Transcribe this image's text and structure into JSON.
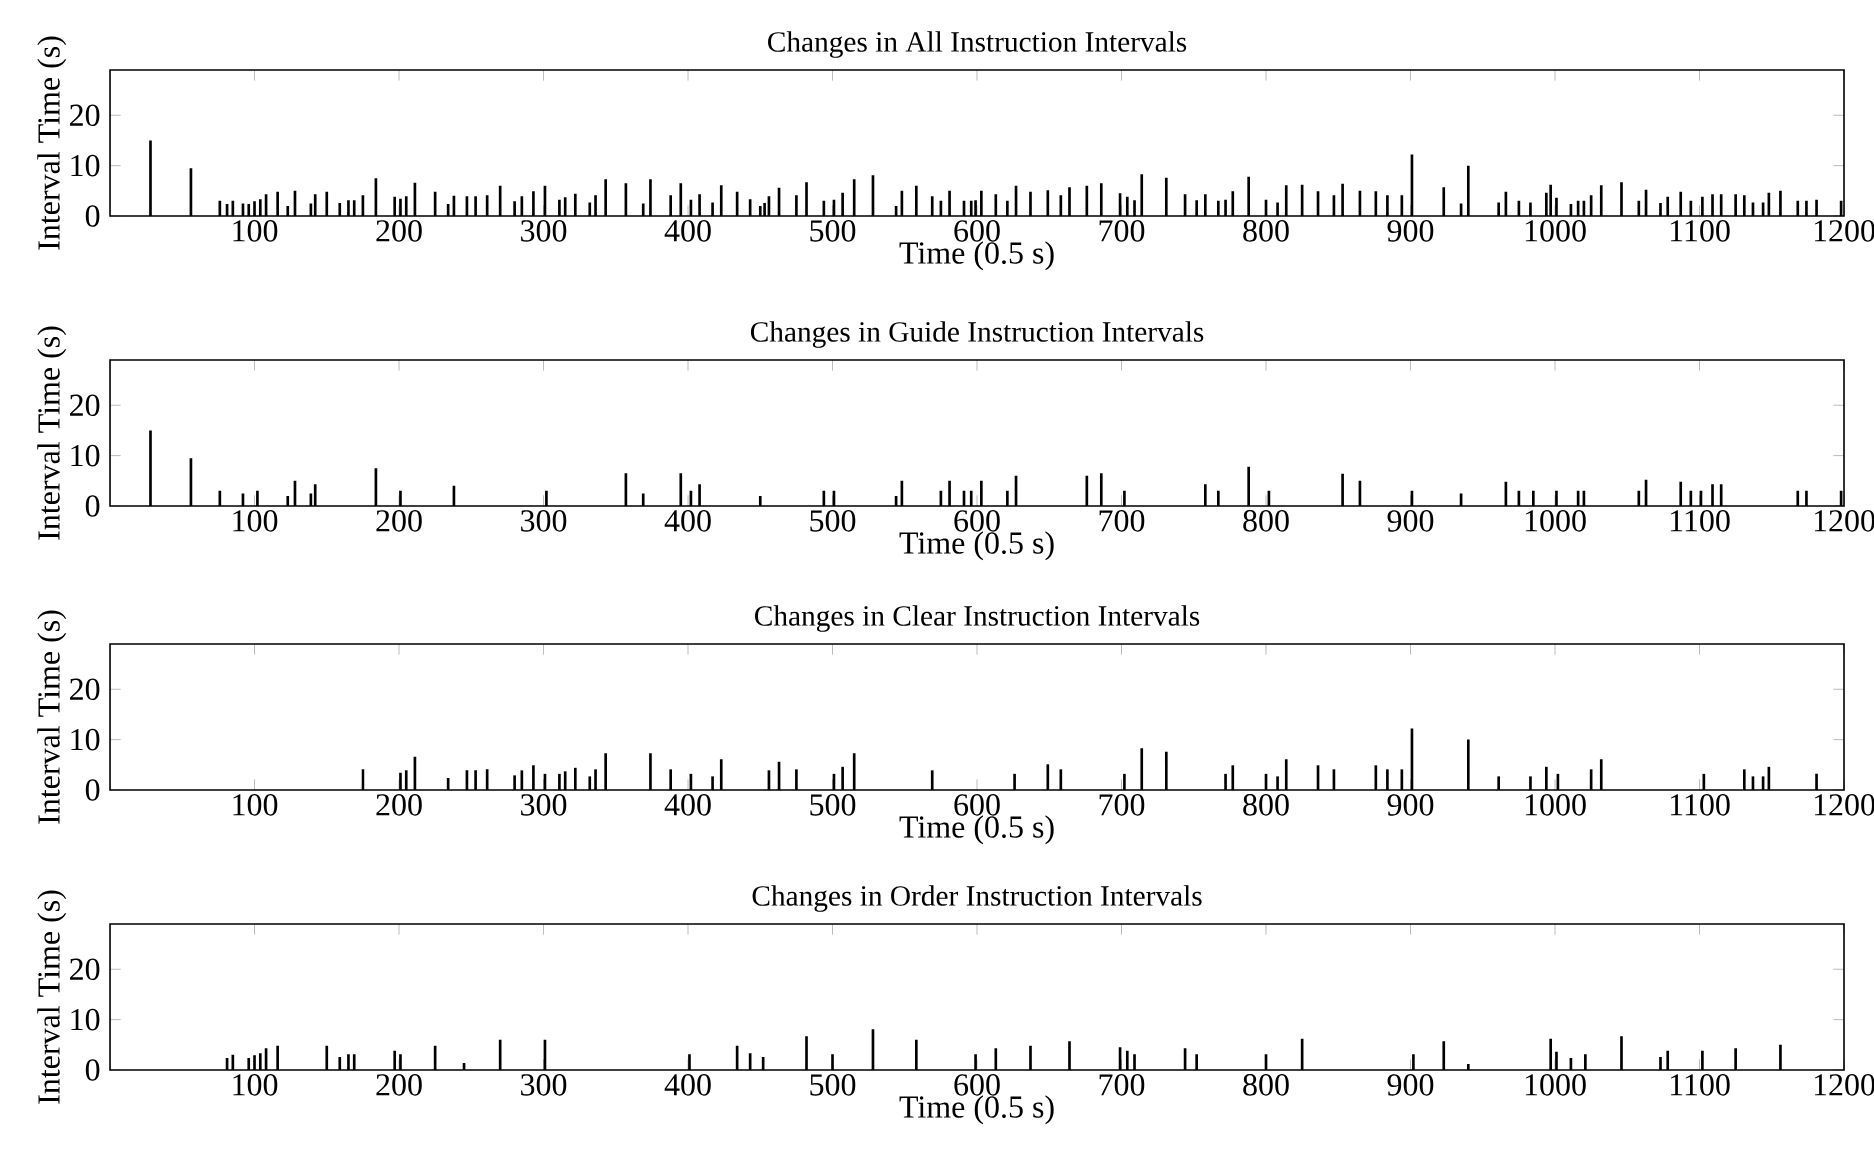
{
  "chart_data": [
    {
      "type": "bar",
      "title": "Changes in All Instruction Intervals",
      "xlabel": "Time (0.5 s)",
      "ylabel": "Interval Time (s)",
      "color": "#000000",
      "xlim": [
        0,
        1200
      ],
      "ylim": [
        0,
        29
      ],
      "xticks": [
        100,
        200,
        300,
        400,
        500,
        600,
        700,
        800,
        900,
        1000,
        1100,
        1200
      ],
      "yticks": [
        0,
        10,
        20
      ],
      "x": [
        28,
        56,
        76,
        81,
        85,
        92,
        96,
        100,
        104,
        108,
        116,
        123,
        128,
        139,
        142,
        150,
        159,
        165,
        169,
        175,
        184,
        197,
        201,
        205,
        211,
        225,
        234,
        238,
        247,
        253,
        261,
        270,
        280,
        285,
        293,
        301,
        311,
        315,
        322,
        332,
        336,
        343,
        357,
        369,
        374,
        388,
        395,
        402,
        408,
        417,
        423,
        434,
        443,
        450,
        453,
        456,
        463,
        475,
        482,
        494,
        501,
        507,
        515,
        528,
        544,
        548,
        558,
        569,
        575,
        581,
        591,
        596,
        599,
        603,
        613,
        621,
        627,
        637,
        649,
        658,
        664,
        676,
        686,
        699,
        704,
        709,
        714,
        731,
        744,
        752,
        758,
        767,
        772,
        777,
        788,
        800,
        808,
        814,
        825,
        836,
        847,
        853,
        865,
        876,
        884,
        894,
        901,
        923,
        935,
        940,
        961,
        966,
        975,
        983,
        994,
        997,
        1001,
        1011,
        1016,
        1020,
        1025,
        1032,
        1046,
        1058,
        1063,
        1073,
        1078,
        1087,
        1094,
        1102,
        1109,
        1115,
        1125,
        1131,
        1137,
        1144,
        1148,
        1156,
        1168,
        1174,
        1181,
        1198
      ],
      "values": [
        15,
        9.5,
        3,
        2.4,
        3,
        2.5,
        2.4,
        2.9,
        3.3,
        4.3,
        4.8,
        2,
        5,
        2.5,
        4.3,
        4.8,
        2.6,
        3.1,
        3.1,
        4.1,
        7.5,
        3.8,
        3.4,
        3.9,
        6.6,
        4.8,
        2.4,
        4,
        3.9,
        3.9,
        4.1,
        6,
        2.9,
        3.9,
        4.9,
        6,
        3.2,
        3.7,
        4.4,
        2.7,
        4.1,
        7.3,
        6.5,
        2.5,
        7.3,
        4.1,
        6.5,
        3.2,
        4.3,
        2.7,
        6.1,
        4.8,
        3.3,
        2,
        2.6,
        3.9,
        5.6,
        4.1,
        6.7,
        3,
        3.2,
        4.6,
        7.3,
        8.1,
        2,
        5,
        6,
        3.9,
        3,
        5,
        3,
        3,
        3.1,
        5,
        4.3,
        3,
        6,
        4.8,
        5.1,
        4.1,
        5.7,
        6,
        6.5,
        4.5,
        3.8,
        3.1,
        8.3,
        7.6,
        4.3,
        3.1,
        4.3,
        3,
        3.2,
        4.9,
        7.8,
        3.2,
        2.7,
        6.1,
        6.2,
        4.9,
        4.1,
        6.4,
        5,
        4.9,
        4.1,
        4.1,
        12.2,
        5.7,
        2.5,
        10,
        2.7,
        4.8,
        3,
        2.7,
        4.6,
        6.2,
        3.6,
        2.4,
        3,
        3,
        4.1,
        6.1,
        6.7,
        3,
        5.2,
        2.6,
        3.8,
        4.8,
        3,
        3.8,
        4.3,
        4.3,
        4.3,
        4.1,
        2.7,
        2.7,
        4.6,
        5,
        3,
        3,
        3.2,
        3
      ]
    },
    {
      "type": "bar",
      "title": "Changes in Guide Instruction Intervals",
      "xlabel": "Time (0.5 s)",
      "ylabel": "Interval Time (s)",
      "color": "#000000",
      "xlim": [
        0,
        1200
      ],
      "ylim": [
        0,
        29
      ],
      "xticks": [
        100,
        200,
        300,
        400,
        500,
        600,
        700,
        800,
        900,
        1000,
        1100,
        1200
      ],
      "yticks": [
        0,
        10,
        20
      ],
      "x": [
        28,
        56,
        76,
        92,
        102,
        123,
        128,
        139,
        142,
        184,
        201,
        238,
        302,
        357,
        369,
        395,
        402,
        408,
        450,
        494,
        501,
        544,
        548,
        575,
        581,
        591,
        596,
        603,
        621,
        627,
        676,
        686,
        702,
        758,
        767,
        788,
        802,
        853,
        865,
        901,
        935,
        966,
        975,
        985,
        1001,
        1016,
        1020,
        1058,
        1063,
        1087,
        1094,
        1101,
        1109,
        1115,
        1168,
        1174,
        1198
      ],
      "values": [
        15,
        9.5,
        3,
        2.5,
        3,
        2,
        5,
        2.5,
        4.3,
        7.5,
        3,
        4,
        3,
        6.5,
        2.5,
        6.5,
        3,
        4.3,
        2,
        3,
        3,
        2,
        5,
        3,
        5,
        3,
        3,
        5,
        3,
        6,
        6,
        6.5,
        3,
        4.3,
        3,
        7.8,
        3,
        6.4,
        5,
        3,
        2.5,
        4.8,
        3,
        3,
        3,
        3,
        3,
        3,
        5.2,
        4.8,
        3,
        3,
        4.3,
        4.3,
        3,
        3,
        3
      ]
    },
    {
      "type": "bar",
      "title": "Changes in Clear Instruction Intervals",
      "xlabel": "Time (0.5 s)",
      "ylabel": "Interval Time (s)",
      "color": "#000000",
      "xlim": [
        0,
        1200
      ],
      "ylim": [
        0,
        29
      ],
      "xticks": [
        100,
        200,
        300,
        400,
        500,
        600,
        700,
        800,
        900,
        1000,
        1100,
        1200
      ],
      "yticks": [
        0,
        10,
        20
      ],
      "x": [
        175,
        201,
        205,
        211,
        234,
        247,
        253,
        261,
        280,
        285,
        293,
        301,
        311,
        315,
        322,
        332,
        336,
        343,
        374,
        388,
        402,
        417,
        423,
        456,
        463,
        475,
        501,
        507,
        515,
        569,
        626,
        649,
        658,
        702,
        714,
        731,
        772,
        777,
        800,
        808,
        814,
        836,
        847,
        876,
        884,
        894,
        901,
        940,
        961,
        983,
        994,
        1002,
        1025,
        1032,
        1103,
        1131,
        1137,
        1144,
        1148,
        1181
      ],
      "values": [
        4.1,
        3.4,
        3.9,
        6.6,
        2.4,
        3.9,
        3.9,
        4.1,
        2.9,
        3.9,
        4.9,
        3.2,
        3.2,
        3.7,
        4.4,
        2.7,
        4.1,
        7.3,
        7.3,
        4.1,
        3.2,
        2.7,
        6.1,
        3.9,
        5.6,
        4.1,
        3.2,
        4.6,
        7.3,
        3.9,
        3.2,
        5.1,
        4.1,
        3.2,
        8.3,
        7.6,
        3.2,
        4.9,
        3.2,
        2.7,
        6.1,
        4.9,
        4.1,
        4.9,
        4.1,
        4.1,
        12.2,
        10,
        2.7,
        2.7,
        4.6,
        3.2,
        4.1,
        6.1,
        3.2,
        4.1,
        2.7,
        2.7,
        4.6,
        3.2
      ]
    },
    {
      "type": "bar",
      "title": "Changes in Order Instruction Intervals",
      "xlabel": "Time (0.5 s)",
      "ylabel": "Interval Time (s)",
      "color": "#000000",
      "xlim": [
        0,
        1200
      ],
      "ylim": [
        0,
        29
      ],
      "xticks": [
        100,
        200,
        300,
        400,
        500,
        600,
        700,
        800,
        900,
        1000,
        1100,
        1200
      ],
      "yticks": [
        0,
        10,
        20
      ],
      "x": [
        81,
        85,
        96,
        100,
        104,
        108,
        116,
        150,
        159,
        165,
        169,
        197,
        201,
        225,
        245,
        270,
        301,
        401,
        434,
        443,
        452,
        482,
        500,
        528,
        558,
        599,
        613,
        637,
        664,
        699,
        704,
        709,
        744,
        752,
        800,
        825,
        902,
        923,
        940,
        997,
        1001,
        1011,
        1021,
        1046,
        1073,
        1078,
        1102,
        1125,
        1156
      ],
      "values": [
        2.4,
        3,
        2.4,
        2.9,
        3.3,
        4.3,
        4.8,
        4.8,
        2.6,
        3.1,
        3.1,
        3.8,
        3.1,
        4.8,
        1.4,
        6,
        6,
        3.1,
        4.8,
        3.3,
        2.6,
        6.7,
        3.1,
        8.1,
        6,
        3.1,
        4.3,
        4.8,
        5.7,
        4.5,
        3.8,
        3.1,
        4.3,
        3.1,
        3.1,
        6.2,
        3.1,
        5.7,
        1.2,
        6.2,
        3.6,
        2.4,
        3.1,
        6.7,
        2.6,
        3.8,
        3.8,
        4.3,
        5
      ]
    }
  ]
}
